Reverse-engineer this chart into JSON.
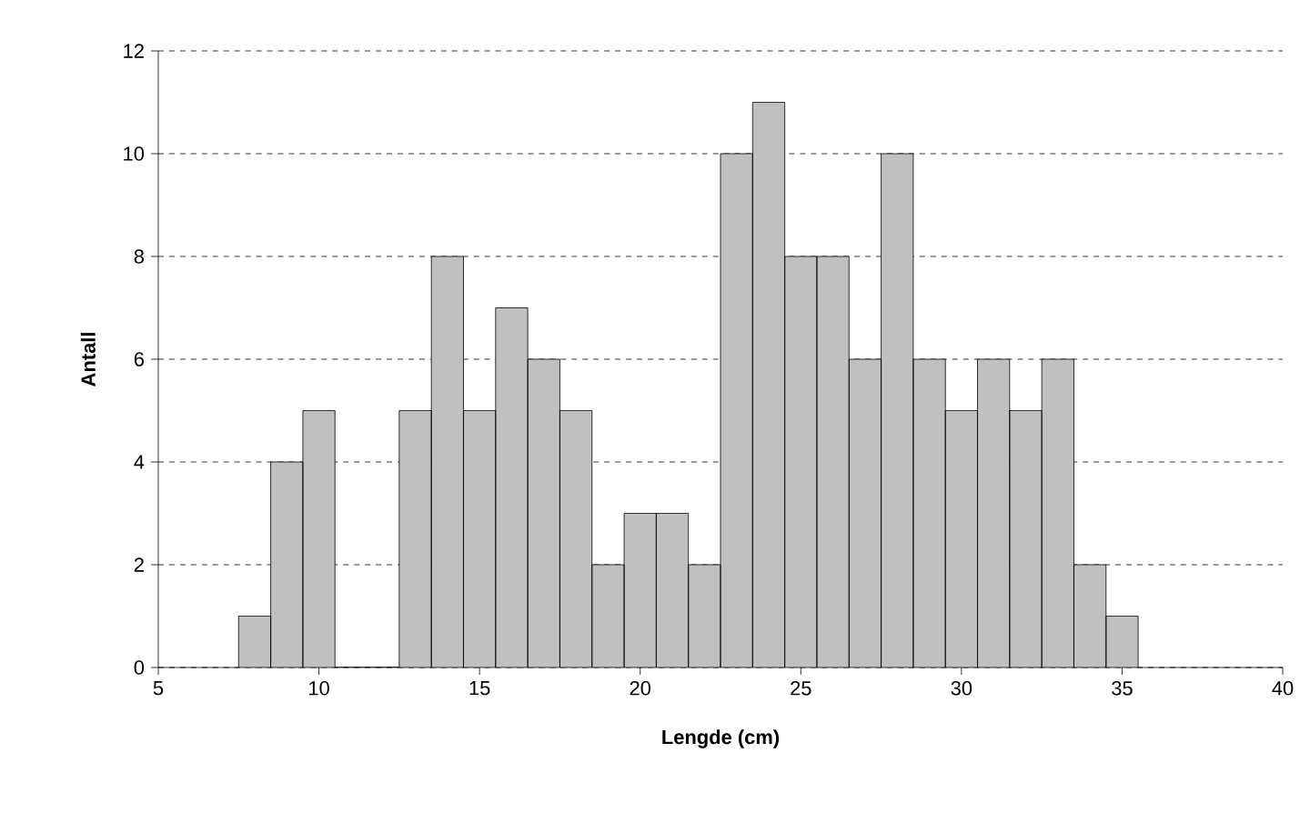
{
  "chart_data": {
    "type": "histogram",
    "xlabel": "Lengde (cm)",
    "ylabel": "Antall",
    "bins": [
      7.5,
      8.5,
      9.5,
      10.5,
      11.5,
      12.5,
      13.5,
      14.5,
      15.5,
      16.5,
      17.5,
      18.5,
      19.5,
      20.5,
      21.5,
      22.5,
      23.5,
      24.5,
      25.5,
      26.5,
      27.5,
      28.5,
      29.5,
      30.5,
      31.5,
      32.5,
      33.5,
      34.5,
      35.5
    ],
    "values": [
      1,
      4,
      5,
      0,
      0,
      5,
      8,
      5,
      7,
      6,
      5,
      2,
      3,
      3,
      2,
      10,
      11,
      8,
      8,
      6,
      10,
      6,
      5,
      6,
      5,
      6,
      2,
      1
    ],
    "color": "#c0c0c0",
    "xlim": [
      5,
      40
    ],
    "xticks": [
      5,
      10,
      15,
      20,
      25,
      30,
      35,
      40
    ],
    "ylim": [
      0,
      12
    ],
    "yticks": [
      0,
      2,
      4,
      6,
      8,
      10,
      12
    ],
    "grid": "y"
  }
}
